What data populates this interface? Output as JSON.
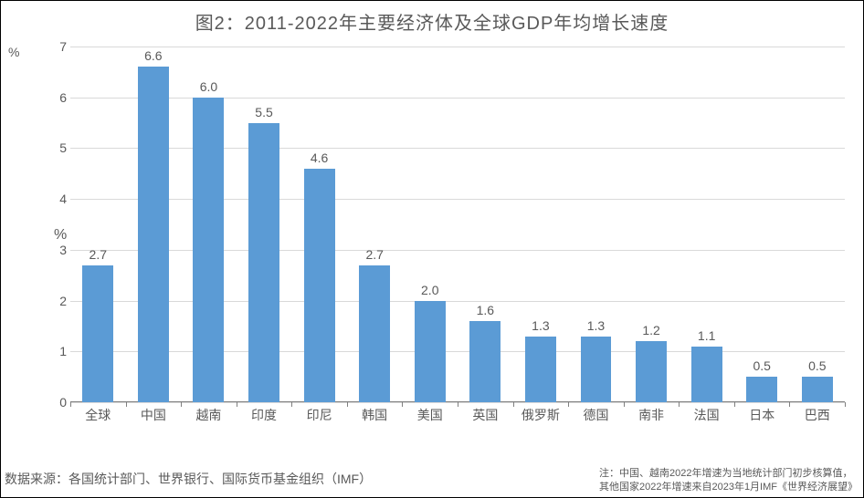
{
  "chart": {
    "type": "bar",
    "title": "图2：2011-2022年主要经济体及全球GDP年均增长速度",
    "title_fontsize": 20,
    "title_color": "#595959",
    "y_axis_unit_top": "%",
    "y_axis_unit_side": "%",
    "categories": [
      "全球",
      "中国",
      "越南",
      "印度",
      "印尼",
      "韩国",
      "美国",
      "英国",
      "俄罗斯",
      "德国",
      "南非",
      "法国",
      "日本",
      "巴西"
    ],
    "values": [
      2.7,
      6.6,
      6.0,
      5.5,
      4.6,
      2.7,
      2.0,
      1.6,
      1.3,
      1.3,
      1.2,
      1.1,
      0.5,
      0.5
    ],
    "value_labels": [
      "2.7",
      "6.6",
      "6.0",
      "5.5",
      "4.6",
      "2.7",
      "2.0",
      "1.6",
      "1.3",
      "1.3",
      "1.2",
      "1.1",
      "0.5",
      "0.5"
    ],
    "bar_color": "#5b9bd5",
    "ylim": [
      0,
      7
    ],
    "ytick_step": 1,
    "yticks": [
      0,
      1,
      2,
      3,
      4,
      5,
      6,
      7
    ],
    "grid_color": "#d9d9d9",
    "axis_color": "#808080",
    "label_color": "#595959",
    "background_color": "#ffffff",
    "label_fontsize": 14,
    "value_label_fontsize": 14,
    "bar_width_ratio": 0.56
  },
  "footer": {
    "source_label": "数据来源：",
    "source_text": "各国统计部门、世界银行、国际货币基金组织（IMF）",
    "note_line1": "注：中国、越南2022年增速为当地统计部门初步核算值，",
    "note_line2": "其他国家2022年增速来自2023年1月IMF《世界经济展望》"
  }
}
